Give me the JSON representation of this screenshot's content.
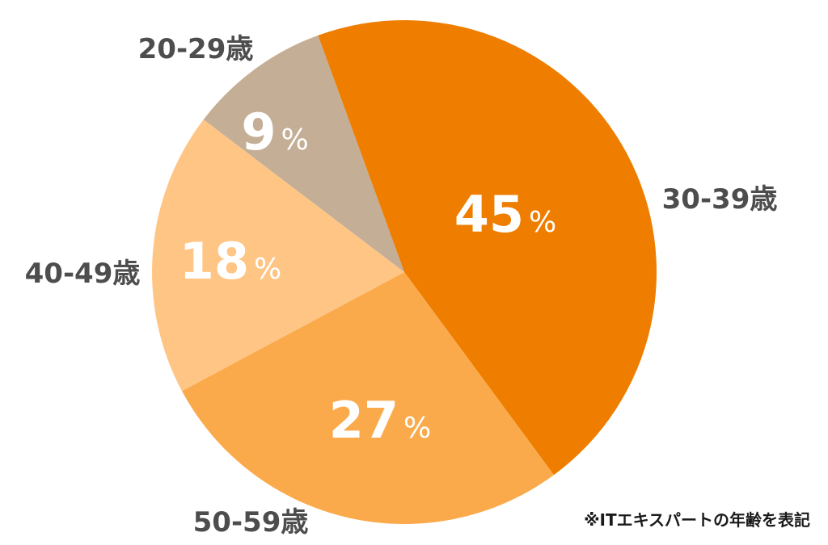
{
  "chart_data": {
    "type": "pie",
    "categories": [
      "30-39歳",
      "50-59歳",
      "40-49歳",
      "20-29歳"
    ],
    "values": [
      45,
      27,
      18,
      9
    ],
    "value_labels": [
      "45",
      "27",
      "18",
      "9"
    ],
    "unit": "%",
    "colors": [
      "#ee7d00",
      "#fbaa4b",
      "#ffc585",
      "#c4ae95"
    ]
  },
  "footnote": "※ITエキスパートの年齢を表記"
}
